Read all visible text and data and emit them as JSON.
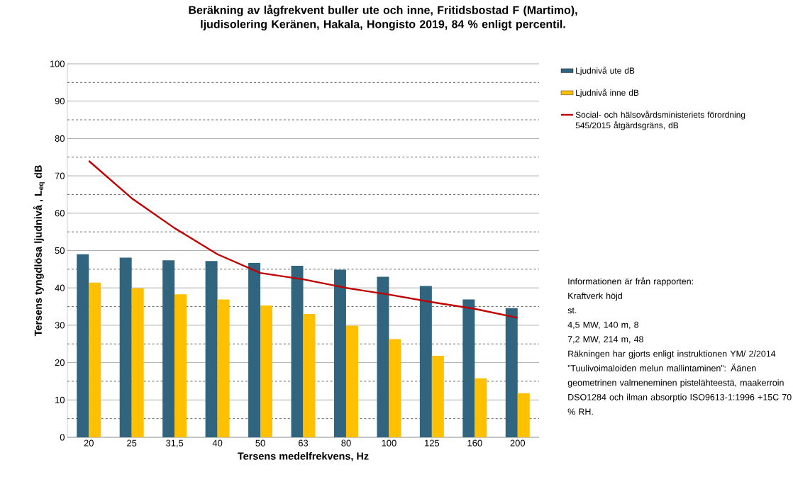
{
  "chart_data": {
    "type": "bar",
    "title": "Beräkning av lågfrekvent buller ute och inne, Fritidsbostad F (Martimo), ljudisolering Keränen, Hakala, Hongisto 2019, 84 % enligt percentil.",
    "xlabel": "Tersens medelfrekvens, Hz",
    "ylabel": "Tersens tyngdlösa ljudnivå , L$_{eq}$ dB",
    "categories": [
      "20",
      "25",
      "31,5",
      "40",
      "50",
      "63",
      "80",
      "100",
      "125",
      "160",
      "200"
    ],
    "series": [
      {
        "name": "Ljudnivå ute dB",
        "color": "#31657f",
        "values": [
          49,
          48.1,
          47.4,
          47.2,
          46.7,
          45.9,
          44.9,
          43,
          40.5,
          36.9,
          34.6
        ]
      },
      {
        "name": "Ljudnivå inne dB",
        "color": "#ffc000",
        "values": [
          41.4,
          39.9,
          38.3,
          36.9,
          35.3,
          33,
          29.9,
          26.3,
          21.8,
          15.8,
          11.8
        ]
      },
      {
        "name": "Social- och hälsovårdsministeriets förordning 545/2015 åtgärdsgräns, dB",
        "type": "line",
        "color": "#c00000",
        "values": [
          74,
          64,
          56,
          49,
          44,
          42.3,
          40,
          38.2,
          36.2,
          34.4,
          32
        ]
      }
    ],
    "ylim": [
      0,
      100
    ],
    "yticks": [
      0,
      10,
      20,
      30,
      40,
      50,
      60,
      70,
      80,
      90,
      100
    ],
    "grid": "y",
    "legend": "right",
    "annotations": [
      "Informationen är från rapporten:",
      "Kraftverk höjd",
      "st.",
      "4,5 MW, 140 m, 8",
      "7,2 MW, 214 m, 48",
      "Räkningen har gjorts enligt instruktionen YM/ 2/2014 ”Tuulivoimaloiden melun mallintaminen”: Äänen geometrinen valmeneminen pistelähteestä, maakerroin DSO1284 och ilman absorptio ISO9613-1:1996 +15C 70 % RH."
    ]
  }
}
